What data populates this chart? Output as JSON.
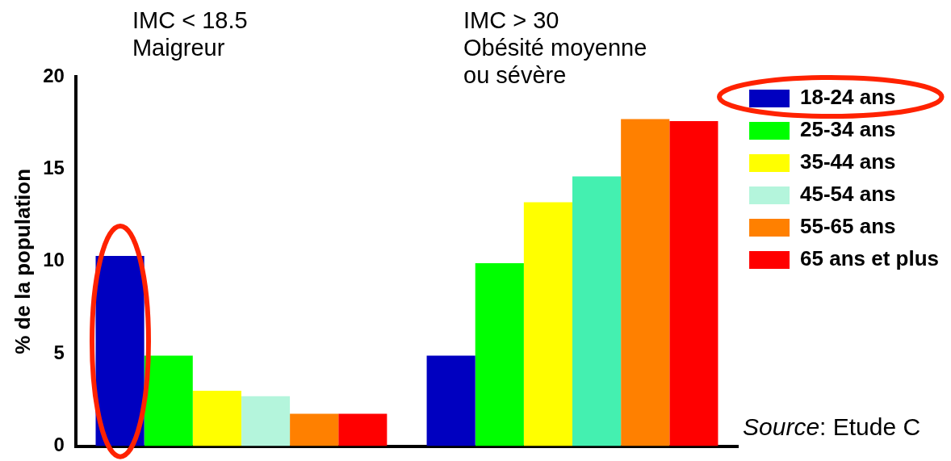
{
  "chart_data": {
    "type": "bar",
    "ylabel": "% de la population",
    "categories": [
      null,
      null
    ],
    "series": [
      {
        "name": "18-24 ans",
        "color": "#0000c0",
        "values": [
          10.3,
          4.9
        ]
      },
      {
        "name": "25-34 ans",
        "color": "#00ff00",
        "values": [
          4.9,
          9.9
        ]
      },
      {
        "name": "35-44 ans",
        "color": "#ffff00",
        "values": [
          3.0,
          13.2
        ]
      },
      {
        "name": "45-54 ans",
        "colors": [
          "#b4f5dc",
          "#44f0b0"
        ],
        "values": [
          2.7,
          14.6
        ]
      },
      {
        "name": "55-65 ans",
        "color": "#ff8000",
        "values": [
          1.75,
          17.7
        ]
      },
      {
        "name": "65 ans et plus",
        "color": "#ff0000",
        "values": [
          1.75,
          17.6
        ]
      }
    ],
    "ylim": [
      0,
      20
    ],
    "yticks": [
      0,
      5,
      10,
      15,
      20
    ],
    "grid": false,
    "legend": "right",
    "annotations": [
      "IMC < 18.5\nMaigreur",
      "IMC > 30\nObésité moyenne\nou sévère",
      "Source: Etude C"
    ]
  }
}
